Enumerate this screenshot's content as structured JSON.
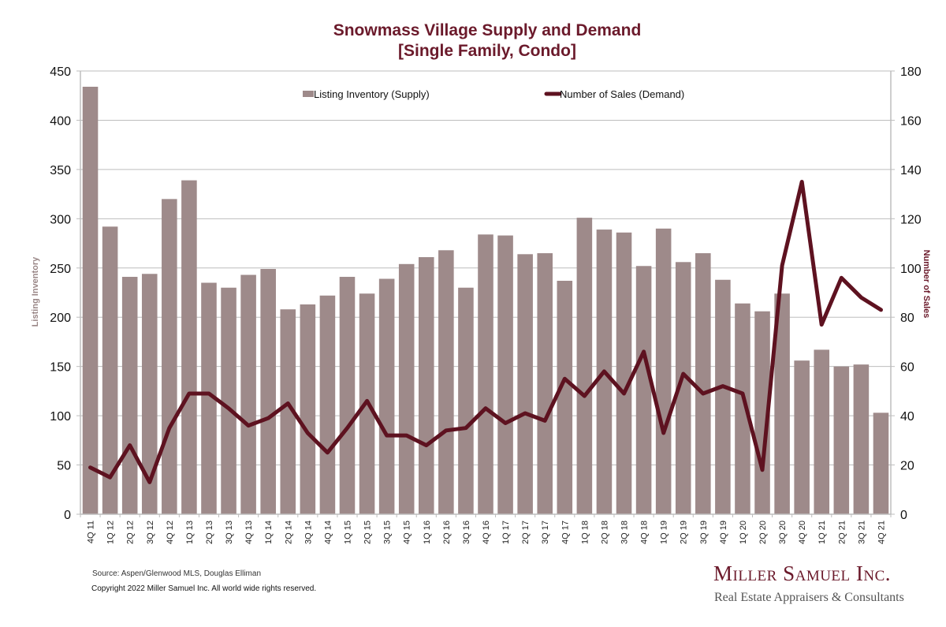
{
  "chart_data": {
    "type": "bar",
    "title": "Snowmass Village Supply and Demand",
    "subtitle": "[Single Family, Condo]",
    "xlabel": "",
    "ylabel": "Listing Inventory",
    "y2label": "Number of Sales",
    "ylim": [
      0,
      450
    ],
    "y2lim": [
      0,
      180
    ],
    "yticks": [
      0,
      50,
      100,
      150,
      200,
      250,
      300,
      350,
      400,
      450
    ],
    "y2ticks": [
      0,
      20,
      40,
      60,
      80,
      100,
      120,
      140,
      160,
      180
    ],
    "grid": true,
    "legend_position": "top",
    "categories": [
      "4Q 11",
      "1Q 12",
      "2Q 12",
      "3Q 12",
      "4Q 12",
      "1Q 13",
      "2Q 13",
      "3Q 13",
      "4Q 13",
      "1Q 14",
      "2Q 14",
      "3Q 14",
      "4Q 14",
      "1Q 15",
      "2Q 15",
      "3Q 15",
      "4Q 15",
      "1Q 16",
      "2Q 16",
      "3Q 16",
      "4Q 16",
      "1Q 17",
      "2Q 17",
      "3Q 17",
      "4Q 17",
      "1Q 18",
      "2Q 18",
      "3Q 18",
      "4Q 18",
      "1Q 19",
      "2Q 19",
      "3Q 19",
      "4Q 19",
      "1Q 20",
      "2Q 20",
      "3Q 20",
      "4Q 20",
      "1Q 21",
      "2Q 21",
      "3Q 21",
      "4Q 21"
    ],
    "series": [
      {
        "name": "Listing Inventory (Supply)",
        "type": "bar",
        "axis": "left",
        "color": "#9e8a8a",
        "values": [
          434,
          292,
          241,
          244,
          320,
          339,
          235,
          230,
          243,
          249,
          208,
          213,
          222,
          241,
          224,
          239,
          254,
          261,
          268,
          230,
          284,
          283,
          264,
          265,
          237,
          301,
          289,
          286,
          252,
          290,
          256,
          265,
          238,
          214,
          206,
          224,
          156,
          167,
          150,
          152,
          103
        ]
      },
      {
        "name": "Number of Sales (Demand)",
        "type": "line",
        "axis": "right",
        "color": "#5e1220",
        "values": [
          19,
          15,
          28,
          13,
          35,
          49,
          49,
          43,
          36,
          39,
          45,
          33,
          25,
          35,
          46,
          32,
          32,
          28,
          34,
          35,
          43,
          37,
          41,
          38,
          55,
          48,
          58,
          49,
          66,
          33,
          57,
          49,
          52,
          49,
          18,
          101,
          135,
          77,
          96,
          88,
          83
        ]
      }
    ]
  },
  "footer": {
    "source": "Source: Aspen/Glenwood MLS, Douglas Elliman",
    "copyright": "Copyright 2022 Miller Samuel Inc.  All world wide rights reserved."
  },
  "logo": {
    "name": "Miller Samuel Inc.",
    "tagline": "Real Estate Appraisers & Consultants"
  }
}
